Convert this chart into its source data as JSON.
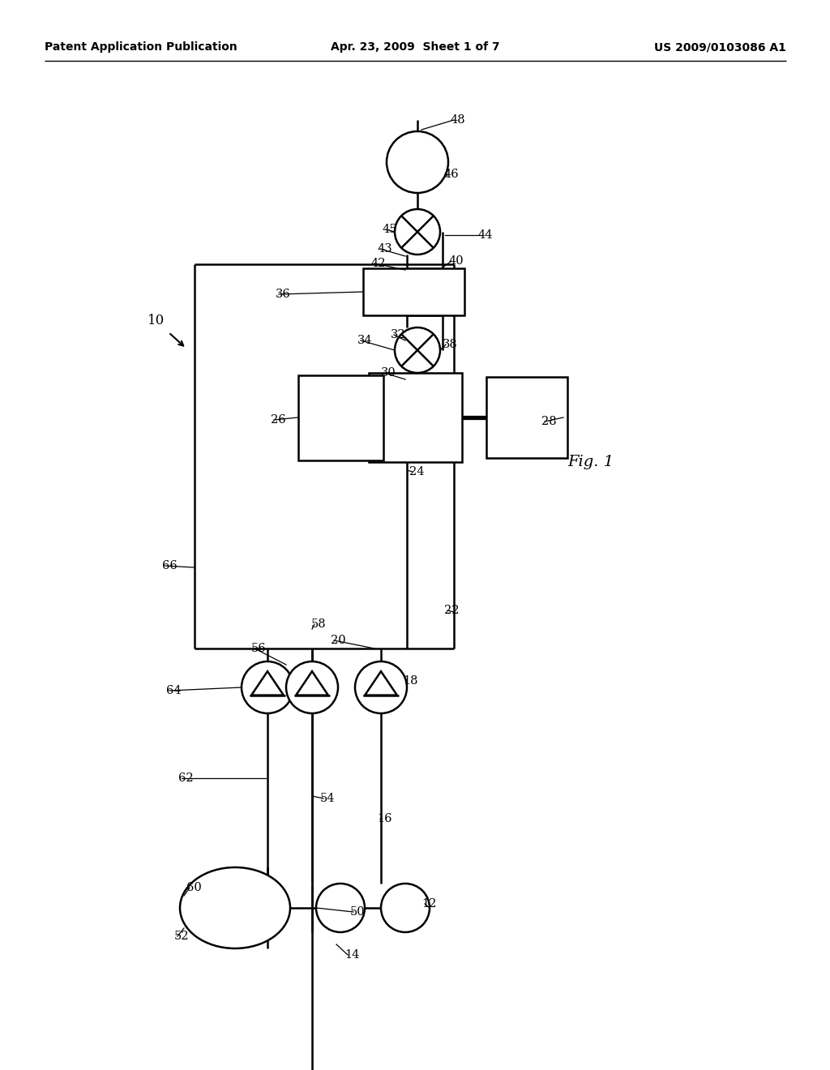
{
  "bg_color": "#ffffff",
  "header_left": "Patent Application Publication",
  "header_mid": "Apr. 23, 2009  Sheet 1 of 7",
  "header_right": "US 2009/0103086 A1"
}
